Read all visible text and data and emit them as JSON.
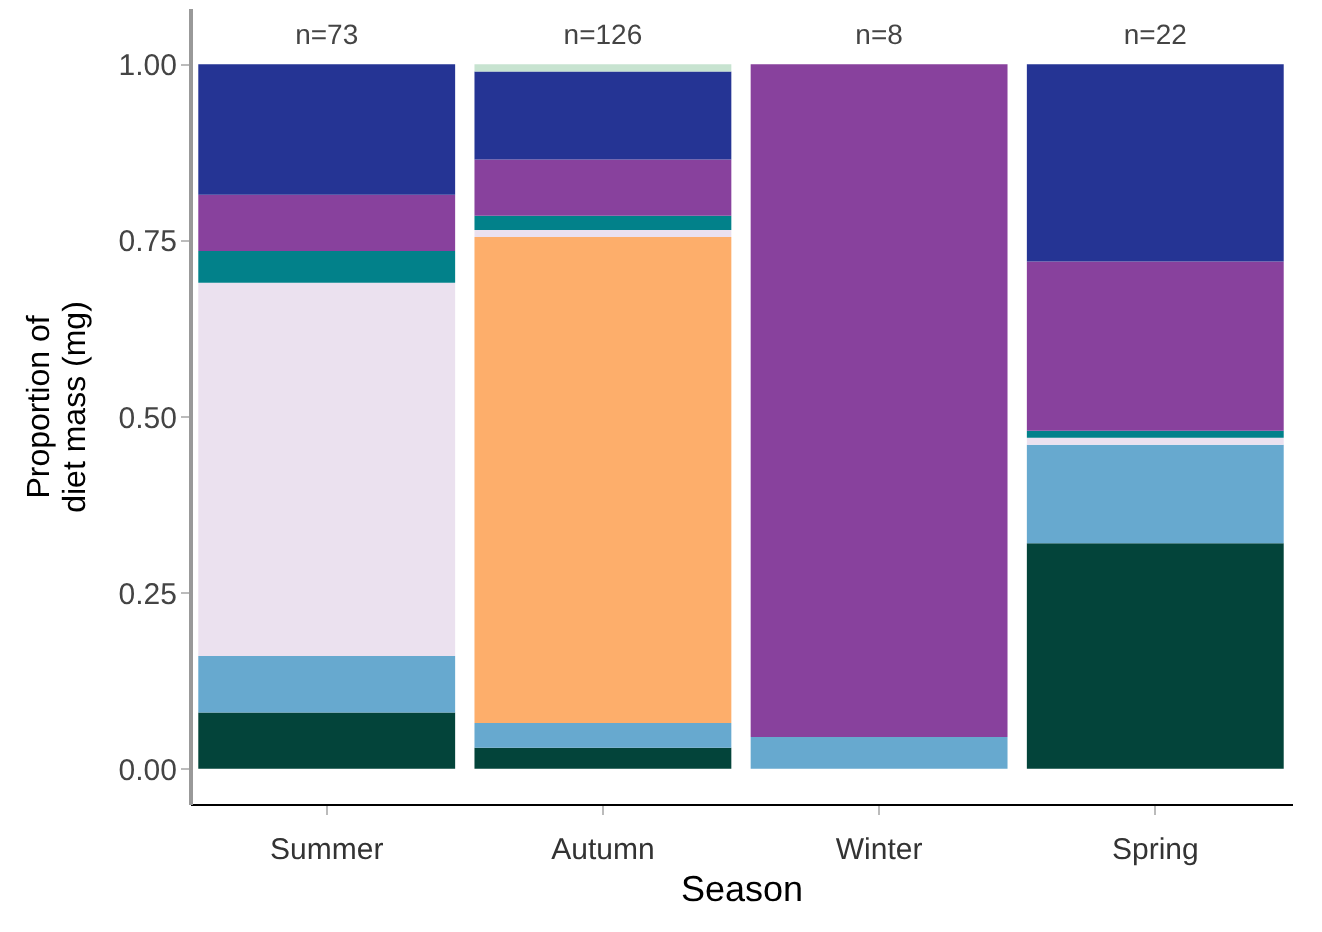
{
  "chart_data": {
    "type": "bar",
    "stacked": true,
    "xlabel": "Season",
    "ylabel": "Proportion of\ndiet mass (mg)",
    "categories": [
      "Summer",
      "Autumn",
      "Winter",
      "Spring"
    ],
    "series": [
      {
        "color": "#03443a",
        "values": [
          0.08,
          0.03,
          null,
          0.32
        ]
      },
      {
        "color": "#67a9cf",
        "values": [
          0.08,
          0.035,
          0.045,
          0.14
        ]
      },
      {
        "color": "#fdae6b",
        "values": [
          null,
          0.69,
          null,
          null
        ]
      },
      {
        "color": "#ebe1ef",
        "values": [
          0.53,
          0.01,
          null,
          0.01
        ]
      },
      {
        "color": "#02818a",
        "values": [
          0.045,
          0.02,
          null,
          0.01
        ]
      },
      {
        "color": "#88419d",
        "values": [
          0.08,
          0.08,
          0.955,
          0.24
        ]
      },
      {
        "color": "#253494",
        "values": [
          0.185,
          0.125,
          null,
          0.28
        ]
      },
      {
        "color": "#c7e3d0",
        "values": [
          null,
          0.01,
          null,
          null
        ]
      }
    ],
    "ylim": [
      -0.05,
      1.08
    ],
    "yticks": [
      {
        "value": 0,
        "label": "0.00"
      },
      {
        "value": 0.25,
        "label": "0.25"
      },
      {
        "value": 0.5,
        "label": "0.50"
      },
      {
        "value": 0.75,
        "label": "0.75"
      },
      {
        "value": 1,
        "label": "1.00"
      }
    ],
    "annotations": [
      "n=73",
      "n=126",
      "n=8",
      "n=22"
    ],
    "grid": false,
    "legend": false
  }
}
